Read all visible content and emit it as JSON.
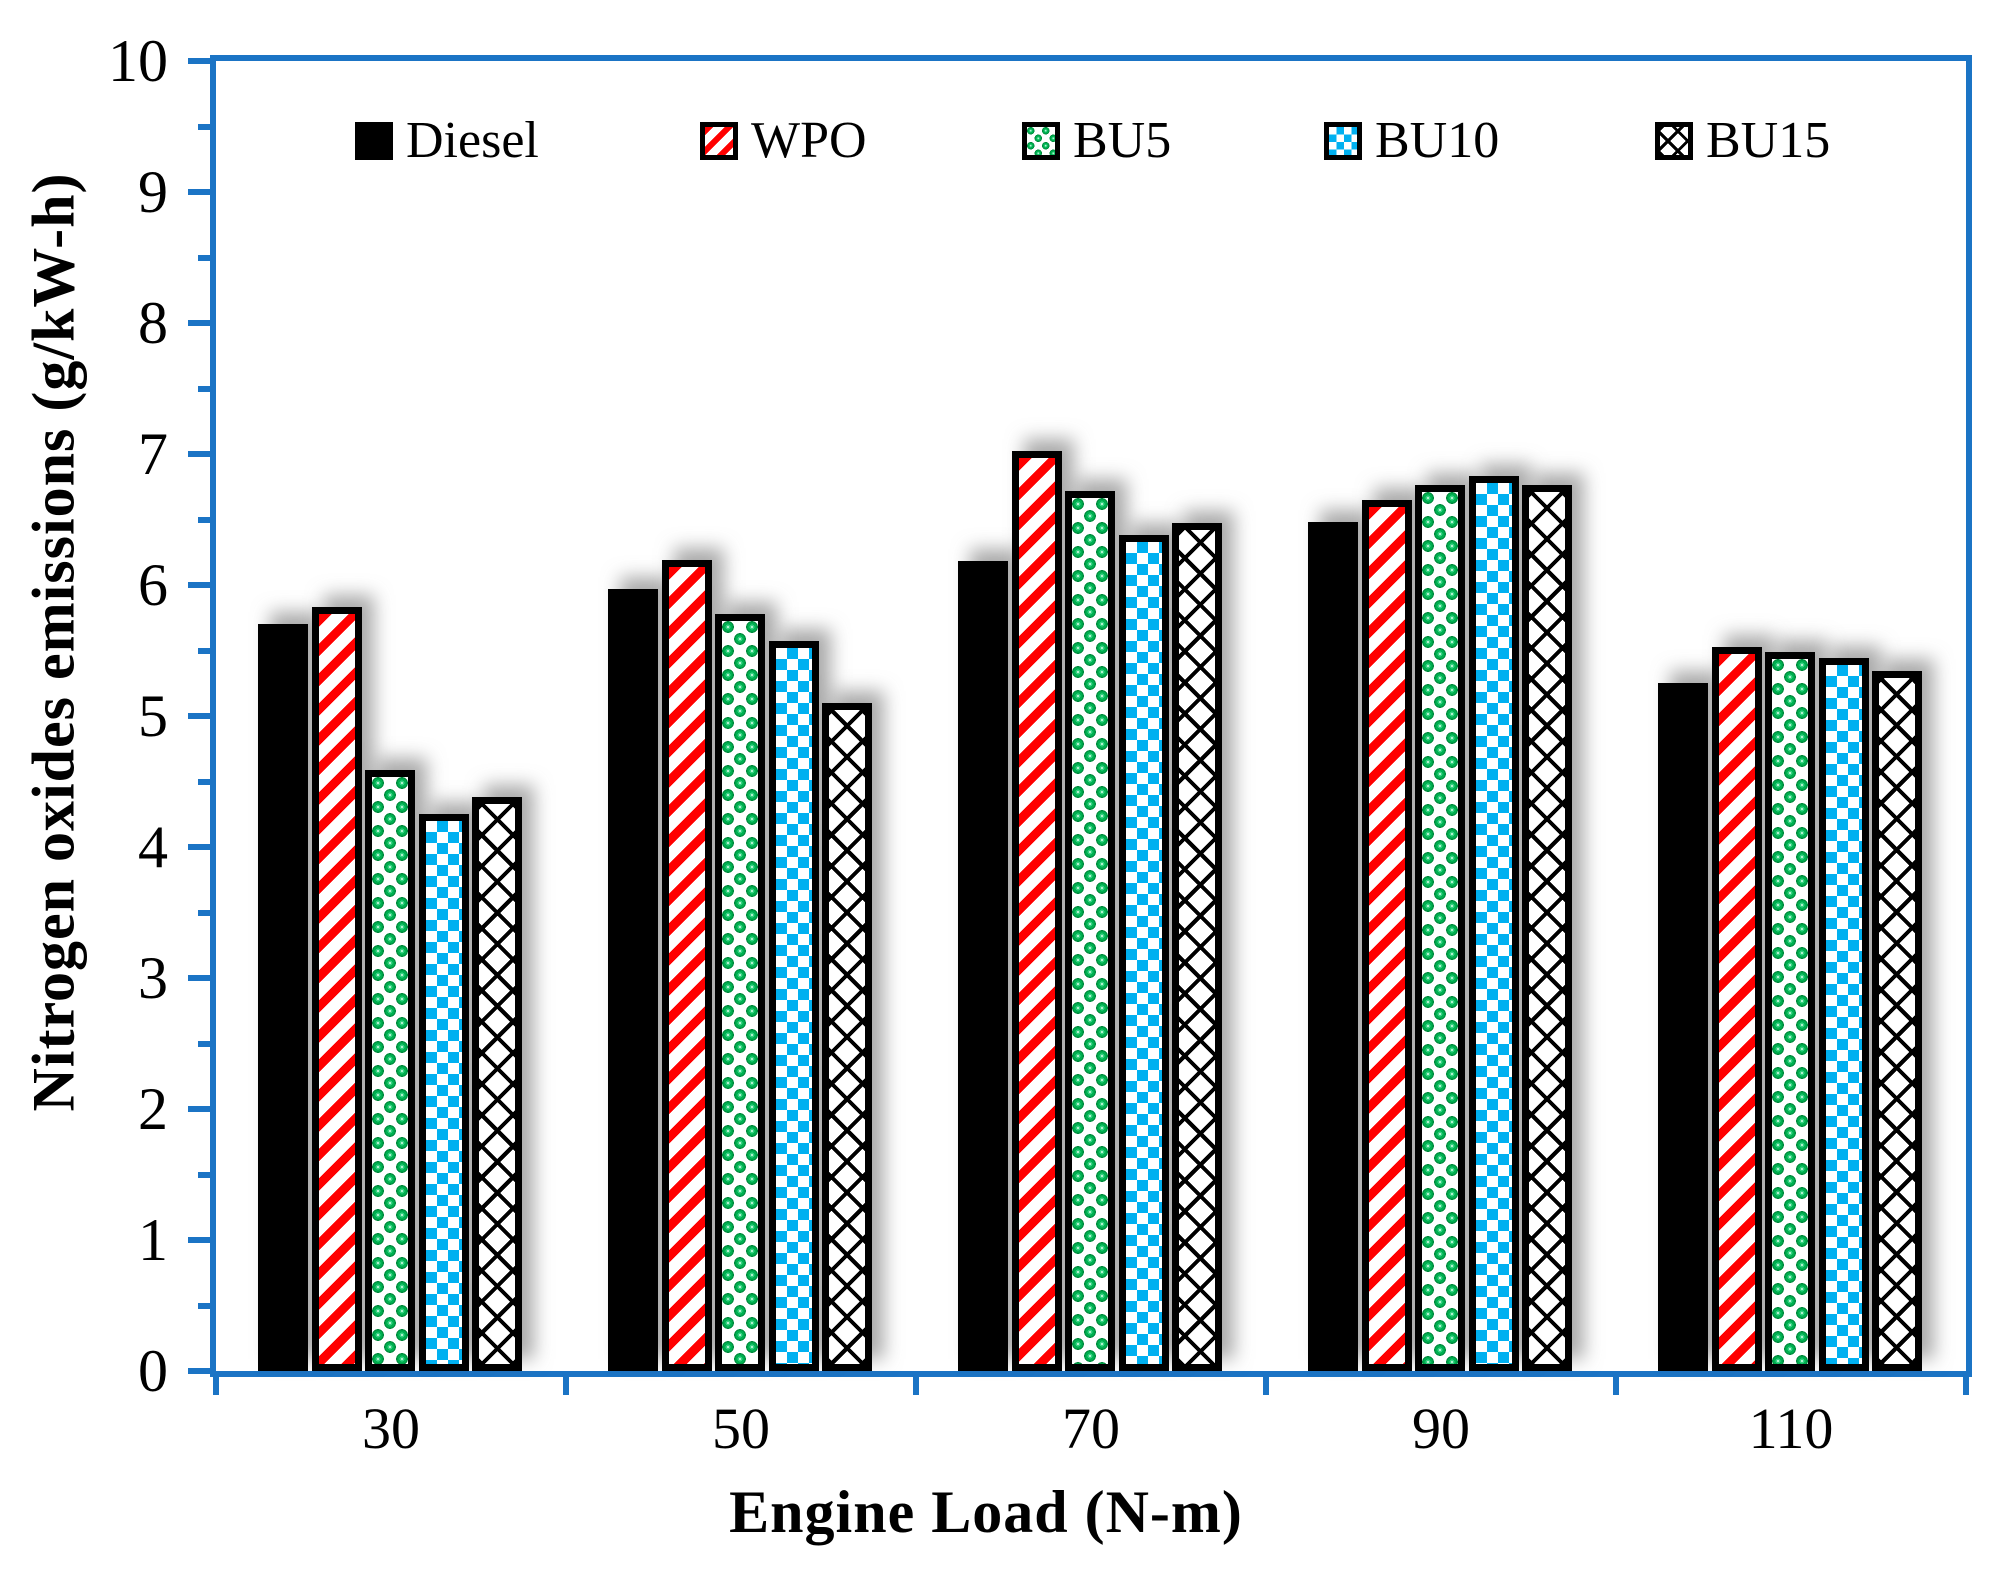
{
  "chart_data": {
    "type": "bar",
    "title": "",
    "xlabel": "Engine Load (N-m)",
    "ylabel": "Nitrogen oxides emissions (g/kW-h)",
    "categories": [
      "30",
      "50",
      "70",
      "90",
      "110"
    ],
    "series": [
      {
        "name": "Diesel",
        "pattern": "solid-black",
        "values": [
          5.7,
          5.97,
          6.18,
          6.48,
          5.25
        ]
      },
      {
        "name": "WPO",
        "pattern": "red-diagonal-stripes",
        "values": [
          5.83,
          6.19,
          7.02,
          6.65,
          5.53
        ]
      },
      {
        "name": "BU5",
        "pattern": "green-sphere-checker",
        "values": [
          4.59,
          5.78,
          6.72,
          6.76,
          5.49
        ]
      },
      {
        "name": "BU10",
        "pattern": "blue-checkerboard",
        "values": [
          4.25,
          5.57,
          6.38,
          6.83,
          5.44
        ]
      },
      {
        "name": "BU15",
        "pattern": "black-diamond-crosshatch",
        "values": [
          4.38,
          5.1,
          6.47,
          6.76,
          5.34
        ]
      }
    ],
    "ylim": [
      0,
      10
    ],
    "y_major_step": 1,
    "y_minor_step": 0.5,
    "y_ticks": [
      "0",
      "1",
      "2",
      "3",
      "4",
      "5",
      "6",
      "7",
      "8",
      "9",
      "10"
    ],
    "grid": "off",
    "legend_position": "top-inside"
  },
  "colors": {
    "axis": "#1B74C5",
    "stripe_red": "#FF0000",
    "sphere_green": "#00B050",
    "checker_blue": "#00B0F0",
    "bar_border": "#000000",
    "text": "#000000",
    "background": "#FFFFFF"
  }
}
